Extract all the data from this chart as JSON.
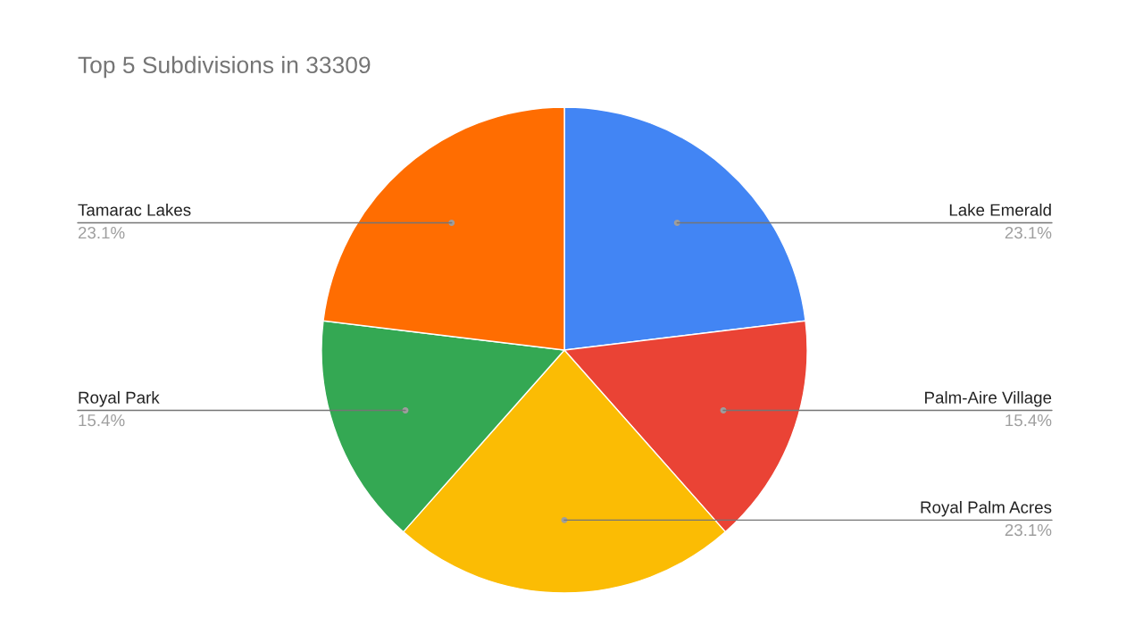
{
  "chart_data": {
    "type": "pie",
    "title": "Top 5 Subdivisions in 33309",
    "categories": [
      "Lake Emerald",
      "Palm-Aire Village",
      "Royal Palm Acres",
      "Royal Park",
      "Tamarac Lakes"
    ],
    "values": [
      23.1,
      15.4,
      23.1,
      15.4,
      23.1
    ],
    "colors": [
      "#4285f4",
      "#ea4335",
      "#fbbc04",
      "#34a853",
      "#ff6d01"
    ],
    "value_labels": [
      "23.1%",
      "15.4%",
      "23.1%",
      "15.4%",
      "23.1%"
    ]
  }
}
